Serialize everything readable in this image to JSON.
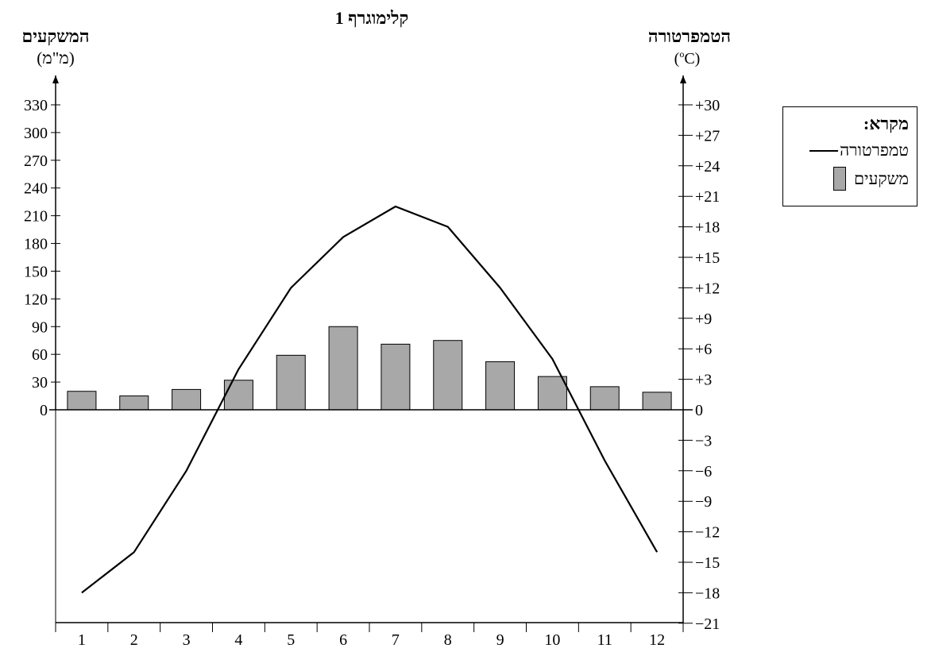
{
  "chart_data": {
    "type": "bar",
    "title": "קלימוגרף 1",
    "left_axis": {
      "label": "המשקעים",
      "unit": "(מ\"מ)",
      "ticks": [
        "0",
        "30",
        "60",
        "90",
        "120",
        "150",
        "180",
        "210",
        "240",
        "270",
        "300",
        "330"
      ]
    },
    "right_axis": {
      "label": "הטמפרטורה",
      "unit_pre": "(",
      "unit_sup": "o",
      "unit_post": "C)",
      "ticks": [
        "−21",
        "−18",
        "−15",
        "−12",
        "−9",
        "−6",
        "−3",
        "0",
        "+3",
        "+6",
        "+9",
        "+12",
        "+15",
        "+18",
        "+21",
        "+24",
        "+27",
        "+30"
      ]
    },
    "categories": [
      "1",
      "2",
      "3",
      "4",
      "5",
      "6",
      "7",
      "8",
      "9",
      "10",
      "11",
      "12"
    ],
    "series": [
      {
        "name": "משקעים",
        "type": "bar",
        "axis": "left",
        "values": [
          20,
          15,
          22,
          32,
          59,
          90,
          71,
          75,
          52,
          36,
          25,
          19
        ]
      },
      {
        "name": "טמפרטורה",
        "type": "line",
        "axis": "right",
        "values": [
          -18,
          -14,
          -6,
          4,
          12,
          17,
          20,
          18,
          12,
          5,
          -5,
          -14
        ]
      }
    ],
    "precip_range": [
      0,
      330
    ],
    "temp_range": [
      -21,
      30
    ],
    "bar_color": "#a8a8a8"
  },
  "legend": {
    "title": "מקרא:",
    "line_label": "טמפרטורה",
    "bar_label": "משקעים"
  }
}
